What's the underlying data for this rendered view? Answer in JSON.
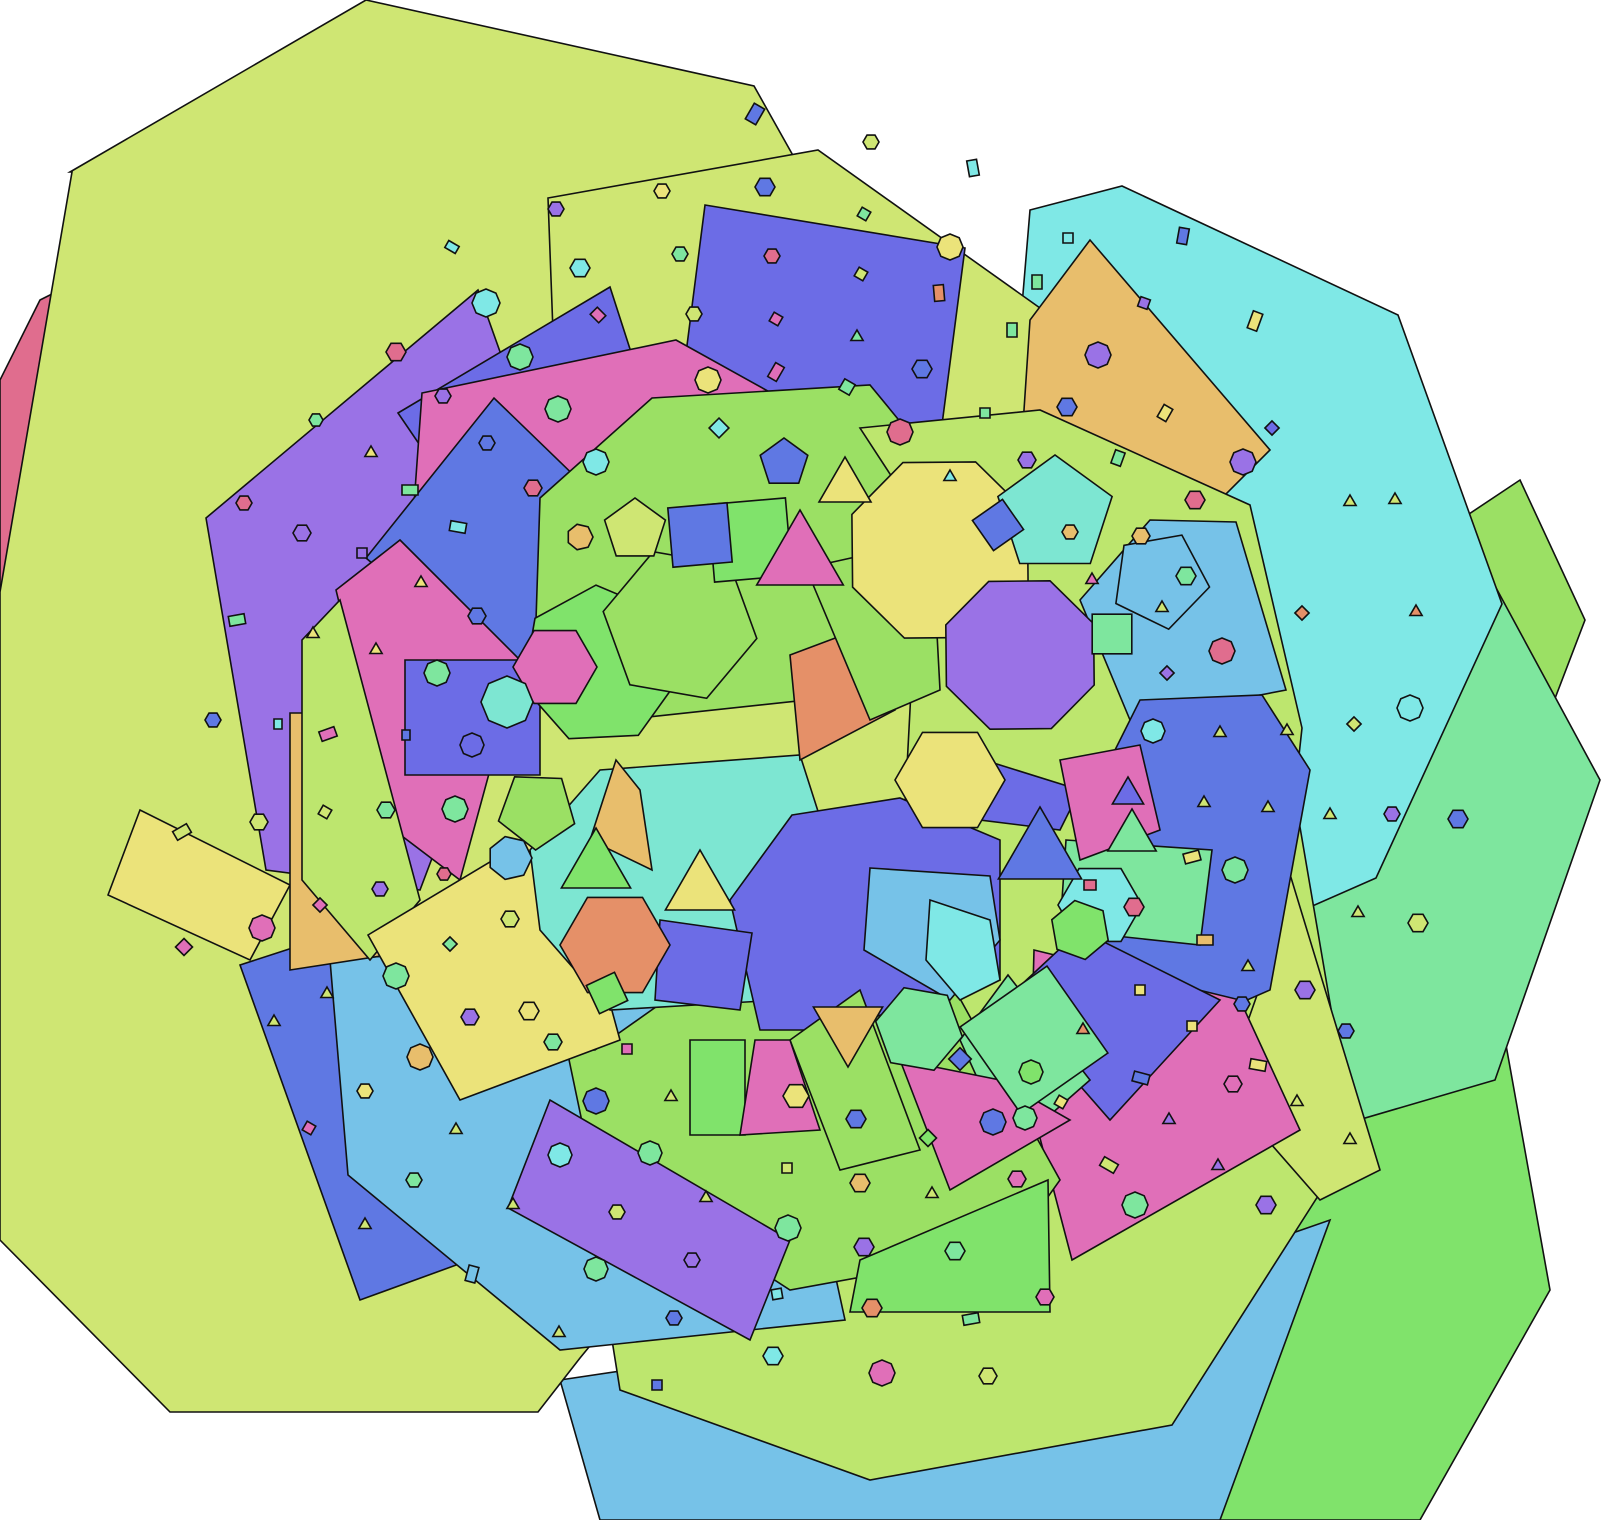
{
  "canvas": {
    "background": "#ffffff",
    "outline": "#111111"
  },
  "palette": {
    "lime": "#cfe673",
    "green": "#80e36b",
    "mint": "#7ee69e",
    "leaf": "#9be064",
    "pale_green": "#bde66e",
    "cyan": "#7fe8e6",
    "sky": "#76c2e8",
    "blue": "#5f78e3",
    "indigo": "#6c6ce6",
    "purple": "#9a72e6",
    "pink": "#e06fb8",
    "rose": "#e06d8e",
    "orange": "#e59068",
    "sand": "#e8be6c",
    "yellow": "#ebe37a",
    "aqua": "#7de6d2"
  },
  "composition": {
    "description_free": true,
    "layers": 4,
    "shape_kinds": [
      "triangle",
      "square",
      "pentagon",
      "hexagon",
      "heptagon",
      "octagon",
      "nonagon",
      "decagon"
    ]
  }
}
